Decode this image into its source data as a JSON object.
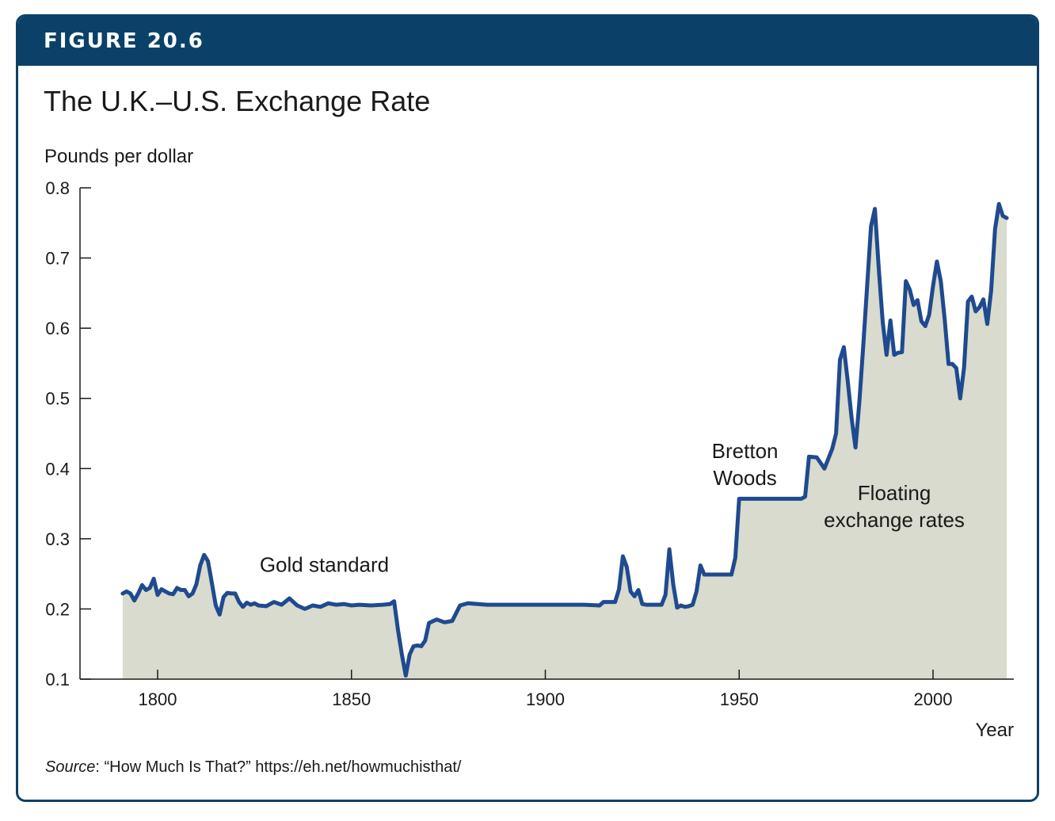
{
  "figure": {
    "label": "FIGURE 20.6",
    "title": "The U.K.–U.S. Exchange Rate",
    "source_label": "Source",
    "source_text": ": “How Much Is That?” https://eh.net/howmuchisthat/"
  },
  "colors": {
    "header": "#0b4168",
    "line": "#1f4a8f",
    "fill": "#d8dbcd",
    "axis": "#1a1a1a"
  },
  "chart_data": {
    "type": "area",
    "title": "The U.K.–U.S. Exchange Rate",
    "ylabel": "Pounds per dollar",
    "xlabel": "Year",
    "xlim": [
      1780,
      2020
    ],
    "ylim": [
      0.1,
      0.8
    ],
    "xticks": [
      1800,
      1850,
      1900,
      1950,
      2000
    ],
    "yticks": [
      0.1,
      0.2,
      0.3,
      0.4,
      0.5,
      0.6,
      0.7,
      0.8
    ],
    "grid": false,
    "series": [
      {
        "x": [
          1791,
          1792,
          1793,
          1794,
          1795,
          1796,
          1797,
          1798,
          1799,
          1800,
          1801,
          1802,
          1803,
          1804,
          1805,
          1806,
          1807,
          1808,
          1809,
          1810,
          1811,
          1812,
          1813,
          1814,
          1815,
          1816,
          1817,
          1818,
          1819,
          1820,
          1821,
          1822,
          1823,
          1824,
          1825,
          1826,
          1828,
          1830,
          1832,
          1834,
          1836,
          1838,
          1840,
          1842,
          1844,
          1846,
          1848,
          1850,
          1852,
          1855,
          1858,
          1860,
          1861,
          1862,
          1863,
          1864,
          1865,
          1866,
          1867,
          1868,
          1869,
          1870,
          1872,
          1874,
          1876,
          1878,
          1880,
          1885,
          1890,
          1895,
          1900,
          1905,
          1910,
          1914,
          1915,
          1916,
          1917,
          1918,
          1919,
          1920,
          1921,
          1922,
          1923,
          1924,
          1925,
          1926,
          1927,
          1928,
          1929,
          1930,
          1931,
          1932,
          1933,
          1934,
          1935,
          1936,
          1937,
          1938,
          1939,
          1940,
          1941,
          1945,
          1946,
          1948,
          1949,
          1950,
          1955,
          1960,
          1965,
          1966,
          1967,
          1968,
          1970,
          1972,
          1974,
          1975,
          1976,
          1977,
          1978,
          1979,
          1980,
          1981,
          1982,
          1983,
          1984,
          1985,
          1986,
          1987,
          1988,
          1989,
          1990,
          1991,
          1992,
          1993,
          1994,
          1995,
          1996,
          1997,
          1998,
          1999,
          2000,
          2001,
          2002,
          2003,
          2004,
          2005,
          2006,
          2007,
          2008,
          2009,
          2010,
          2011,
          2012,
          2013,
          2014,
          2015,
          2016,
          2017,
          2018,
          2019
        ],
        "y": [
          0.222,
          0.225,
          0.222,
          0.212,
          0.222,
          0.234,
          0.227,
          0.23,
          0.243,
          0.22,
          0.228,
          0.225,
          0.222,
          0.221,
          0.23,
          0.227,
          0.227,
          0.218,
          0.222,
          0.235,
          0.262,
          0.277,
          0.268,
          0.237,
          0.205,
          0.192,
          0.217,
          0.223,
          0.222,
          0.222,
          0.21,
          0.203,
          0.209,
          0.206,
          0.208,
          0.205,
          0.204,
          0.21,
          0.206,
          0.215,
          0.205,
          0.2,
          0.205,
          0.203,
          0.208,
          0.206,
          0.207,
          0.205,
          0.206,
          0.205,
          0.206,
          0.207,
          0.211,
          0.17,
          0.135,
          0.105,
          0.135,
          0.147,
          0.148,
          0.147,
          0.155,
          0.18,
          0.185,
          0.181,
          0.183,
          0.205,
          0.208,
          0.206,
          0.206,
          0.206,
          0.206,
          0.206,
          0.206,
          0.205,
          0.21,
          0.21,
          0.21,
          0.21,
          0.228,
          0.275,
          0.26,
          0.225,
          0.218,
          0.227,
          0.207,
          0.206,
          0.206,
          0.206,
          0.206,
          0.206,
          0.22,
          0.285,
          0.235,
          0.202,
          0.205,
          0.203,
          0.204,
          0.206,
          0.225,
          0.262,
          0.249,
          0.249,
          0.249,
          0.249,
          0.273,
          0.357,
          0.357,
          0.357,
          0.357,
          0.357,
          0.36,
          0.417,
          0.416,
          0.4,
          0.428,
          0.45,
          0.555,
          0.573,
          0.525,
          0.472,
          0.43,
          0.495,
          0.575,
          0.66,
          0.745,
          0.77,
          0.685,
          0.61,
          0.562,
          0.611,
          0.562,
          0.565,
          0.566,
          0.667,
          0.655,
          0.633,
          0.64,
          0.61,
          0.603,
          0.619,
          0.66,
          0.695,
          0.667,
          0.613,
          0.549,
          0.549,
          0.543,
          0.5,
          0.544,
          0.638,
          0.645,
          0.624,
          0.63,
          0.641,
          0.606,
          0.654,
          0.741,
          0.777,
          0.76,
          0.757
        ]
      }
    ],
    "annotations": [
      {
        "lines": [
          "Gold standard"
        ],
        "x": 1843,
        "y": 0.253
      },
      {
        "lines": [
          "Bretton",
          "Woods"
        ],
        "x": 1951.5,
        "y": 0.415
      },
      {
        "lines": [
          "Floating",
          "exchange rates"
        ],
        "x": 1990,
        "y": 0.355
      }
    ]
  }
}
